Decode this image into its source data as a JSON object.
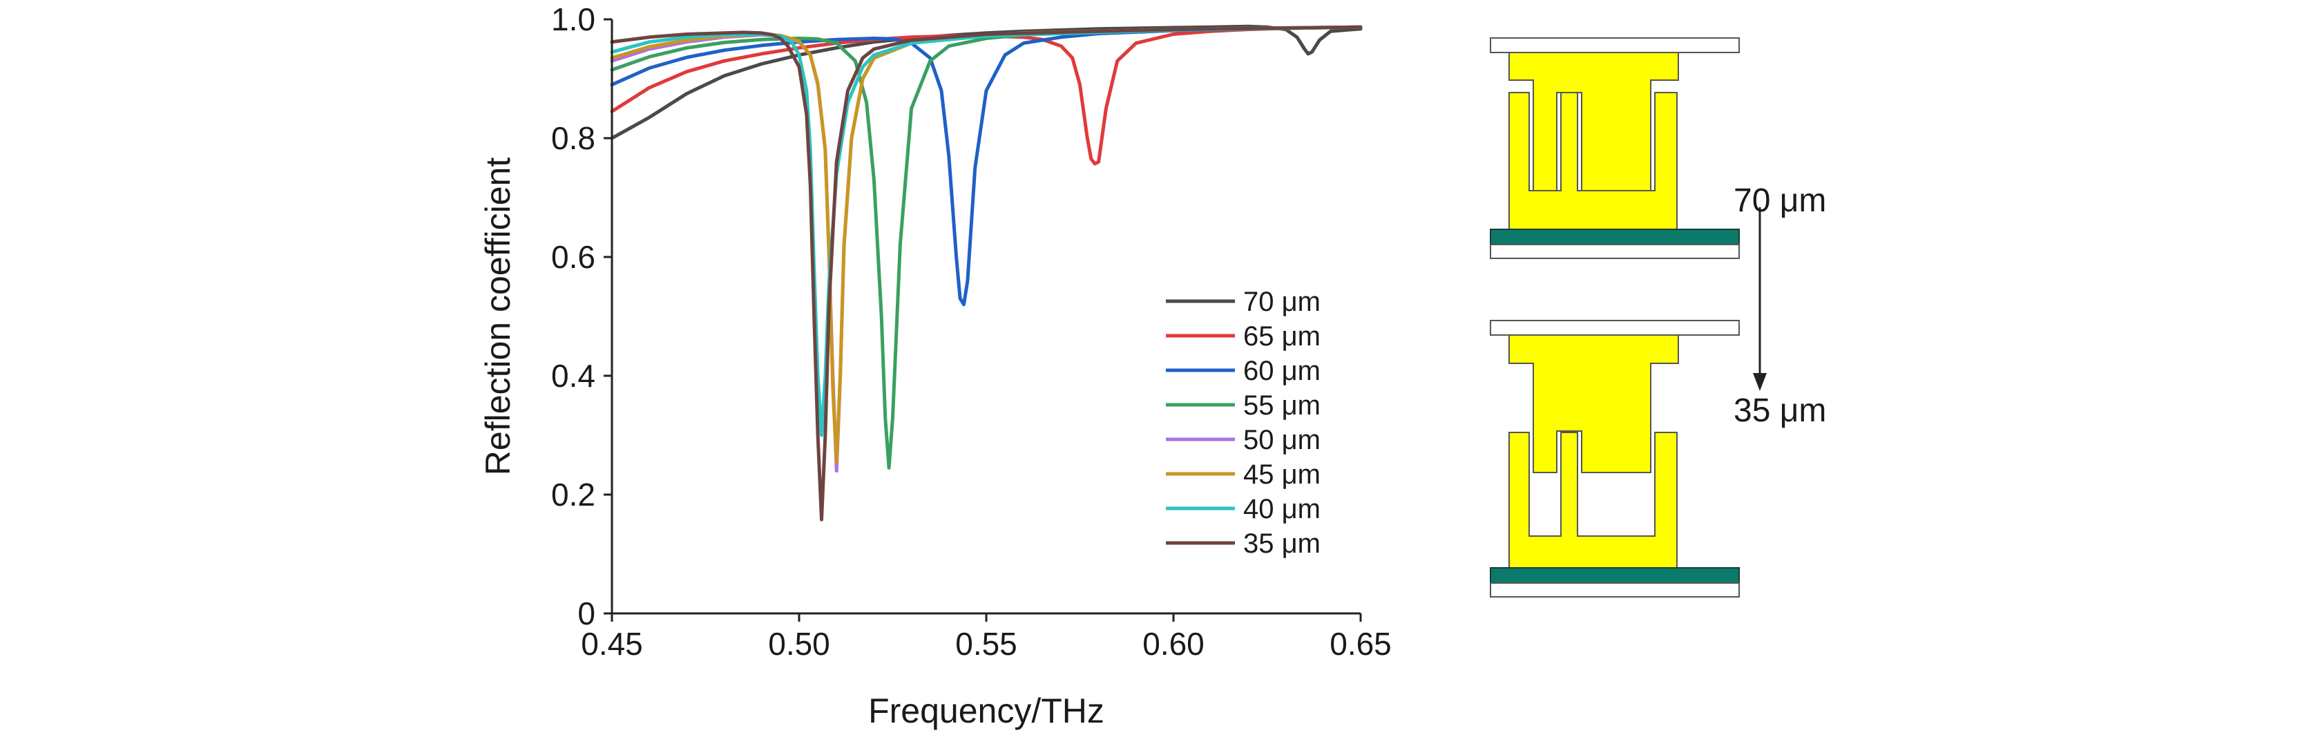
{
  "chart_data": {
    "type": "line",
    "title": "",
    "xlabel": "Frequency/THz",
    "ylabel": "Reflection coefficient",
    "xlim": [
      0.45,
      0.65
    ],
    "ylim": [
      0,
      1.0
    ],
    "x_ticks": [
      0.45,
      0.5,
      0.55,
      0.6,
      0.65
    ],
    "x_tick_labels": [
      "0.45",
      "0.50",
      "0.55",
      "0.60",
      "0.65"
    ],
    "y_ticks": [
      0,
      0.2,
      0.4,
      0.6,
      0.8,
      1.0
    ],
    "y_tick_labels": [
      "0",
      "0.2",
      "0.4",
      "0.6",
      "0.8",
      "1.0"
    ],
    "grid": false,
    "legend_position": "right-center",
    "series": [
      {
        "name": "70 μm",
        "color": "#4a4a4a",
        "x": [
          0.45,
          0.46,
          0.47,
          0.48,
          0.49,
          0.5,
          0.51,
          0.52,
          0.53,
          0.54,
          0.55,
          0.56,
          0.57,
          0.58,
          0.59,
          0.6,
          0.61,
          0.62,
          0.625,
          0.63,
          0.633,
          0.635,
          0.636,
          0.637,
          0.639,
          0.642,
          0.65
        ],
        "y": [
          0.8,
          0.835,
          0.875,
          0.905,
          0.925,
          0.94,
          0.952,
          0.962,
          0.968,
          0.973,
          0.977,
          0.98,
          0.982,
          0.984,
          0.985,
          0.986,
          0.987,
          0.988,
          0.987,
          0.983,
          0.97,
          0.95,
          0.942,
          0.945,
          0.965,
          0.98,
          0.984
        ]
      },
      {
        "name": "65 μm",
        "color": "#e03a3a",
        "x": [
          0.45,
          0.46,
          0.47,
          0.48,
          0.49,
          0.5,
          0.51,
          0.52,
          0.53,
          0.54,
          0.55,
          0.56,
          0.565,
          0.57,
          0.573,
          0.575,
          0.577,
          0.578,
          0.579,
          0.58,
          0.582,
          0.585,
          0.59,
          0.6,
          0.61,
          0.62,
          0.63,
          0.64,
          0.65
        ],
        "y": [
          0.845,
          0.885,
          0.912,
          0.93,
          0.942,
          0.952,
          0.96,
          0.966,
          0.97,
          0.972,
          0.972,
          0.97,
          0.966,
          0.955,
          0.935,
          0.89,
          0.8,
          0.765,
          0.757,
          0.76,
          0.85,
          0.93,
          0.96,
          0.975,
          0.98,
          0.983,
          0.985,
          0.986,
          0.987
        ]
      },
      {
        "name": "60 μm",
        "color": "#2060c8",
        "x": [
          0.45,
          0.46,
          0.47,
          0.48,
          0.49,
          0.5,
          0.51,
          0.52,
          0.525,
          0.53,
          0.535,
          0.538,
          0.54,
          0.542,
          0.543,
          0.544,
          0.545,
          0.547,
          0.55,
          0.555,
          0.56,
          0.57,
          0.58,
          0.6,
          0.62,
          0.65
        ],
        "y": [
          0.89,
          0.918,
          0.936,
          0.948,
          0.956,
          0.962,
          0.966,
          0.968,
          0.967,
          0.96,
          0.935,
          0.88,
          0.77,
          0.6,
          0.53,
          0.52,
          0.56,
          0.75,
          0.88,
          0.94,
          0.96,
          0.97,
          0.976,
          0.981,
          0.984,
          0.987
        ]
      },
      {
        "name": "55 μm",
        "color": "#3aa060",
        "x": [
          0.45,
          0.46,
          0.47,
          0.48,
          0.49,
          0.5,
          0.505,
          0.51,
          0.515,
          0.518,
          0.52,
          0.522,
          0.523,
          0.524,
          0.525,
          0.527,
          0.53,
          0.535,
          0.54,
          0.55,
          0.56,
          0.58,
          0.6,
          0.62,
          0.65
        ],
        "y": [
          0.915,
          0.937,
          0.952,
          0.961,
          0.966,
          0.968,
          0.967,
          0.96,
          0.93,
          0.86,
          0.73,
          0.5,
          0.33,
          0.245,
          0.33,
          0.62,
          0.85,
          0.93,
          0.955,
          0.968,
          0.974,
          0.98,
          0.983,
          0.985,
          0.987
        ]
      },
      {
        "name": "50 μm",
        "color": "#b070e0",
        "x": [
          0.45,
          0.46,
          0.47,
          0.48,
          0.49,
          0.495,
          0.5,
          0.503,
          0.505,
          0.507,
          0.508,
          0.509,
          0.51,
          0.511,
          0.512,
          0.514,
          0.517,
          0.52,
          0.53,
          0.54,
          0.56,
          0.6,
          0.65
        ],
        "y": [
          0.93,
          0.95,
          0.962,
          0.97,
          0.974,
          0.972,
          0.962,
          0.94,
          0.89,
          0.78,
          0.6,
          0.4,
          0.24,
          0.4,
          0.62,
          0.8,
          0.9,
          0.935,
          0.96,
          0.97,
          0.977,
          0.983,
          0.987
        ]
      },
      {
        "name": "45 μm",
        "color": "#c9961f",
        "x": [
          0.45,
          0.46,
          0.47,
          0.48,
          0.49,
          0.495,
          0.5,
          0.503,
          0.505,
          0.507,
          0.508,
          0.509,
          0.51,
          0.511,
          0.512,
          0.514,
          0.517,
          0.52,
          0.53,
          0.54,
          0.56,
          0.6,
          0.65
        ],
        "y": [
          0.935,
          0.954,
          0.965,
          0.972,
          0.975,
          0.973,
          0.963,
          0.94,
          0.892,
          0.78,
          0.6,
          0.38,
          0.255,
          0.4,
          0.62,
          0.8,
          0.9,
          0.935,
          0.96,
          0.97,
          0.977,
          0.983,
          0.987
        ]
      },
      {
        "name": "40 μm",
        "color": "#2bc4c4",
        "x": [
          0.45,
          0.46,
          0.47,
          0.48,
          0.49,
          0.495,
          0.498,
          0.5,
          0.502,
          0.503,
          0.504,
          0.505,
          0.506,
          0.507,
          0.508,
          0.51,
          0.513,
          0.517,
          0.52,
          0.53,
          0.55,
          0.6,
          0.65
        ],
        "y": [
          0.945,
          0.962,
          0.97,
          0.974,
          0.975,
          0.972,
          0.962,
          0.94,
          0.88,
          0.78,
          0.58,
          0.4,
          0.3,
          0.4,
          0.56,
          0.74,
          0.86,
          0.92,
          0.94,
          0.96,
          0.972,
          0.982,
          0.987
        ]
      },
      {
        "name": "35 μm",
        "color": "#6e4440",
        "x": [
          0.45,
          0.46,
          0.47,
          0.48,
          0.485,
          0.49,
          0.493,
          0.495,
          0.497,
          0.5,
          0.502,
          0.503,
          0.504,
          0.505,
          0.506,
          0.507,
          0.508,
          0.51,
          0.513,
          0.517,
          0.52,
          0.53,
          0.55,
          0.6,
          0.65
        ],
        "y": [
          0.962,
          0.97,
          0.975,
          0.977,
          0.978,
          0.977,
          0.974,
          0.968,
          0.955,
          0.92,
          0.84,
          0.72,
          0.5,
          0.3,
          0.158,
          0.3,
          0.52,
          0.76,
          0.88,
          0.935,
          0.95,
          0.965,
          0.975,
          0.983,
          0.987
        ]
      }
    ]
  },
  "schematic": {
    "label_top": "70 μm",
    "label_bottom": "35 μm",
    "colors": {
      "metal": "#ffff00",
      "substrate": "#0b7a6a",
      "plate": "#ffffff",
      "outline": "#555555",
      "arrow": "#222222"
    }
  }
}
